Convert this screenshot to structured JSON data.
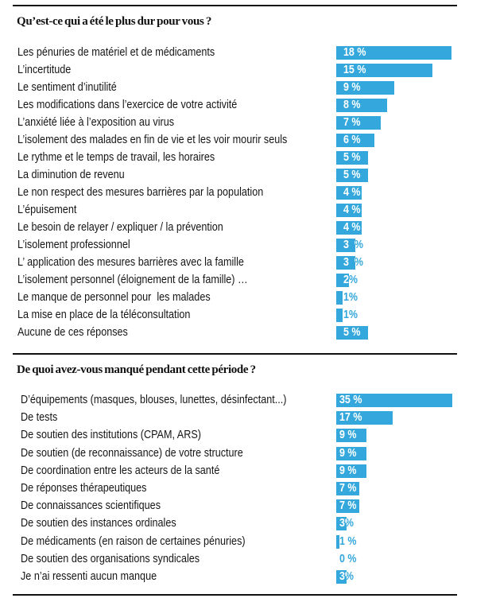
{
  "chart_data": [
    {
      "type": "bar",
      "orientation": "horizontal",
      "title": "Qu’est-ce qui a été le plus dur pour vous ?",
      "xlabel": "",
      "ylabel": "",
      "unit": "%",
      "bar_color": "#34a8dc",
      "grid": false,
      "categories": [
        "Les pénuries de matériel et de médicaments",
        "L’incertitude",
        "Le sentiment d’inutilité",
        "Les modifications dans l’exercice de votre activité",
        "L’anxiété liée à l’exposition au virus",
        "L’isolement des malades en fin de vie et les voir mourir seuls",
        "Le rythme et le temps de travail, les horaires",
        "La diminution de revenu",
        "Le non respect des mesures barrières par la population",
        "L’épuisement",
        "Le besoin de relayer / expliquer / la prévention",
        "L’isolement professionnel",
        "L’ application des mesures barrières avec la famille",
        "L’isolement personnel (éloignement de la famille) …",
        "Le manque de personnel pour  les malades",
        "La mise en place de la téléconsultation",
        "Aucune de ces réponses"
      ],
      "values": [
        18,
        15,
        9,
        8,
        7,
        6,
        5,
        5,
        4,
        4,
        4,
        3,
        3,
        2,
        1,
        1,
        5
      ],
      "value_labels": [
        "18 %",
        "15 %",
        "9 %",
        "8 %",
        "7 %",
        "6 %",
        "5 %",
        "5 %",
        "4 %",
        "4 %",
        "4 %",
        "3  %",
        "3  %",
        "2%",
        "1%",
        "1%",
        "5 %"
      ]
    },
    {
      "type": "bar",
      "orientation": "horizontal",
      "title": "De quoi avez-vous manqué pendant cette période ?",
      "xlabel": "",
      "ylabel": "",
      "unit": "%",
      "bar_color": "#34a8dc",
      "grid": false,
      "categories": [
        "D’équipements (masques, blouses, lunettes, désinfectant...)",
        "De tests",
        "De soutien des institutions (CPAM, ARS)",
        "De soutien (de reconnaissance) de votre structure",
        "De coordination entre les acteurs de la santé",
        "De réponses thérapeutiques",
        "De connaissances scientifiques",
        "De soutien des instances ordinales",
        "De médicaments (en raison de certaines pénuries)",
        "De soutien des organisations syndicales",
        "Je n’ai ressenti aucun manque"
      ],
      "values": [
        35,
        17,
        9,
        9,
        9,
        7,
        7,
        3,
        1,
        0,
        3
      ],
      "value_labels": [
        "35 %",
        "17 %",
        "9 %",
        "9 %",
        "9 %",
        "7 %",
        "7 %",
        "3%",
        "1 %",
        "0 %",
        "3%"
      ]
    }
  ]
}
